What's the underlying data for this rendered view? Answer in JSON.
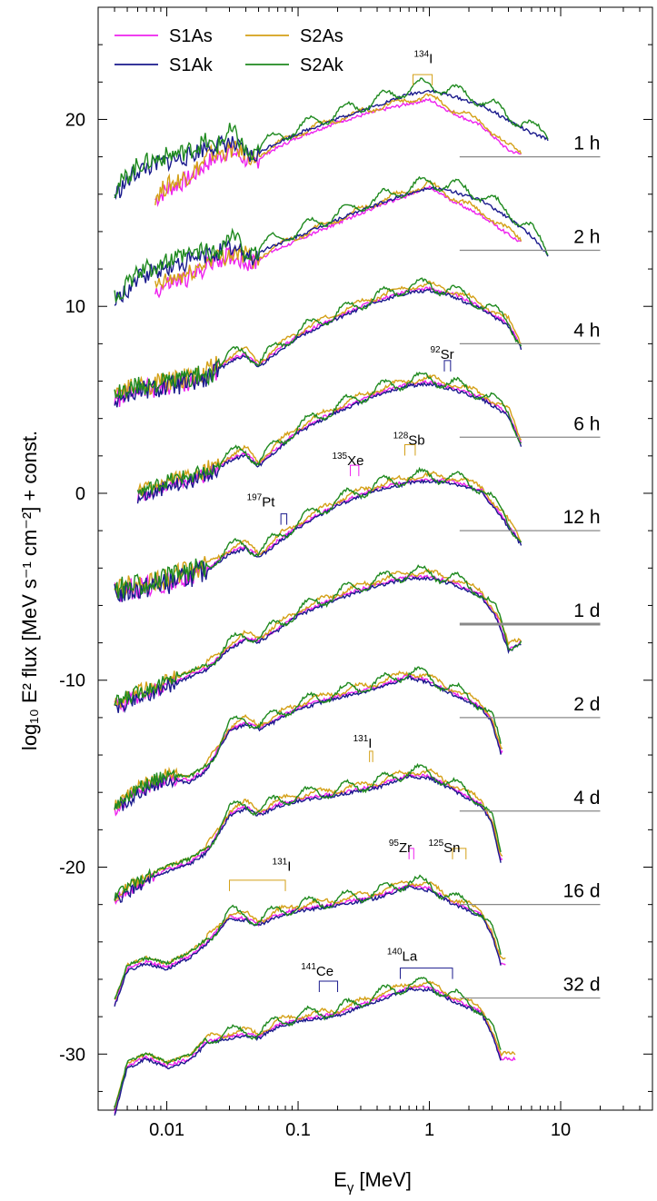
{
  "chart_data": {
    "type": "line",
    "xlabel": "E",
    "xlabel_sub": "γ",
    "xlabel_unit": "[MeV]",
    "ylabel": "log₁₀ E² flux [MeV s⁻¹ cm⁻²] + const.",
    "xscale": "log",
    "xlim": [
      0.003,
      50
    ],
    "ylim": [
      -33,
      26
    ],
    "xticks": [
      {
        "value": 0.01,
        "label": "0.01"
      },
      {
        "value": 0.1,
        "label": "0.1"
      },
      {
        "value": 1,
        "label": "1"
      },
      {
        "value": 10,
        "label": "10"
      }
    ],
    "yticks": [
      {
        "value": 20,
        "label": "20"
      },
      {
        "value": 10,
        "label": "10"
      },
      {
        "value": 0,
        "label": "0"
      },
      {
        "value": -10,
        "label": "-10"
      },
      {
        "value": -20,
        "label": "-20"
      },
      {
        "value": -30,
        "label": "-30"
      }
    ],
    "legend": {
      "position": "top-left",
      "entries": [
        {
          "name": "S1As",
          "color": "#ee22ee"
        },
        {
          "name": "S2As",
          "color": "#d4a017"
        },
        {
          "name": "S1Ak",
          "color": "#1a1a8c"
        },
        {
          "name": "S2Ak",
          "color": "#1f8a1f"
        }
      ]
    },
    "series": [
      {
        "time": "1 h",
        "ref_y": 18,
        "x": [
          0.004,
          0.006,
          0.008,
          0.01,
          0.015,
          0.02,
          0.03,
          0.045,
          0.06,
          0.1,
          0.2,
          0.4,
          0.7,
          1,
          1.5,
          2.5,
          4,
          6,
          8
        ],
        "y": [
          16.2,
          17.5,
          17.8,
          18.0,
          18.3,
          18.8,
          19.0,
          18.2,
          18.8,
          19.5,
          20.3,
          21.0,
          21.6,
          21.8,
          21.5,
          21.0,
          20.2,
          19.5,
          19.2
        ],
        "y_s": [
          null,
          null,
          15.8,
          16.4,
          17.0,
          17.8,
          18.5,
          17.8,
          18.4,
          19.2,
          20.0,
          20.6,
          21.0,
          21.2,
          20.5,
          19.8,
          18.5,
          18.1,
          null
        ],
        "xmax_s": 5,
        "noise_end": 0.05,
        "noise_amp": 0.5
      },
      {
        "time": "2 h",
        "ref_y": 13,
        "x": [
          0.004,
          0.006,
          0.008,
          0.01,
          0.015,
          0.02,
          0.03,
          0.045,
          0.06,
          0.1,
          0.2,
          0.4,
          0.7,
          1,
          1.5,
          2.5,
          4,
          6,
          8
        ],
        "y": [
          10.4,
          11.7,
          12.1,
          12.3,
          12.7,
          13.0,
          13.4,
          12.9,
          13.4,
          14.0,
          14.9,
          15.7,
          16.3,
          16.6,
          16.4,
          15.9,
          15.0,
          14.0,
          13.0
        ],
        "y_s": [
          null,
          null,
          10.9,
          11.3,
          11.7,
          12.3,
          12.9,
          12.4,
          13.0,
          13.7,
          14.6,
          15.5,
          16.1,
          16.5,
          15.8,
          15.0,
          14.0,
          13.2,
          null
        ],
        "xmax_s": 5,
        "noise_end": 0.05,
        "noise_amp": 0.5
      },
      {
        "time": "4 h",
        "ref_y": 8,
        "x": [
          0.004,
          0.006,
          0.01,
          0.02,
          0.03,
          0.04,
          0.05,
          0.07,
          0.1,
          0.2,
          0.4,
          0.7,
          1,
          1.5,
          2.5,
          4,
          5
        ],
        "y": [
          5.2,
          5.7,
          5.9,
          6.3,
          7.3,
          7.6,
          7.0,
          7.8,
          8.6,
          9.6,
          10.5,
          11.0,
          11.1,
          10.8,
          10.1,
          9.2,
          8.0
        ],
        "xmax_s": 5,
        "noise_end": 0.025,
        "noise_amp": 0.55
      },
      {
        "time": "6 h",
        "ref_y": 3,
        "x": [
          0.006,
          0.008,
          0.01,
          0.02,
          0.03,
          0.04,
          0.05,
          0.07,
          0.1,
          0.2,
          0.4,
          0.7,
          1,
          1.5,
          2.5,
          4,
          5
        ],
        "y": [
          0.0,
          0.3,
          0.6,
          1.1,
          2.0,
          2.3,
          1.7,
          2.6,
          3.5,
          4.6,
          5.5,
          6.0,
          6.1,
          5.8,
          5.3,
          4.4,
          2.8
        ],
        "xmax_s": 5,
        "noise_end": 0.025,
        "noise_amp": 0.4
      },
      {
        "time": "12 h",
        "ref_y": -2,
        "x": [
          0.004,
          0.006,
          0.01,
          0.02,
          0.03,
          0.04,
          0.05,
          0.07,
          0.1,
          0.2,
          0.4,
          0.7,
          1,
          1.5,
          2.5,
          3.5,
          5
        ],
        "y": [
          -5.2,
          -4.9,
          -4.6,
          -3.9,
          -3.0,
          -2.7,
          -3.2,
          -2.4,
          -1.6,
          -0.4,
          0.4,
          0.8,
          0.9,
          0.8,
          0.3,
          -1.0,
          -2.5
        ],
        "xmax_s": 5,
        "noise_end": 0.02,
        "noise_amp": 0.6
      },
      {
        "time": "1 d",
        "ref_y": -7,
        "ref_thick": true,
        "x": [
          0.004,
          0.006,
          0.01,
          0.02,
          0.03,
          0.04,
          0.05,
          0.07,
          0.1,
          0.2,
          0.4,
          0.7,
          1,
          1.5,
          2.5,
          3.3,
          4,
          5
        ],
        "y": [
          -11.3,
          -10.7,
          -10.1,
          -9.2,
          -8.1,
          -7.6,
          -7.7,
          -7.1,
          -6.3,
          -5.4,
          -4.7,
          -4.3,
          -4.3,
          -4.6,
          -5.3,
          -6.5,
          -8.2,
          -7.8
        ],
        "xmax_s": 5,
        "noise_end": 0.012,
        "noise_amp": 0.4
      },
      {
        "time": "2 d",
        "ref_y": -12,
        "x": [
          0.004,
          0.006,
          0.01,
          0.015,
          0.02,
          0.03,
          0.04,
          0.05,
          0.07,
          0.1,
          0.2,
          0.4,
          0.7,
          1,
          1.5,
          2.5,
          3,
          3.5
        ],
        "y": [
          -16.8,
          -15.8,
          -15.1,
          -15.2,
          -14.6,
          -12.5,
          -12.1,
          -12.4,
          -11.9,
          -11.3,
          -10.7,
          -10.2,
          -9.6,
          -9.9,
          -10.5,
          -11.3,
          -12.0,
          -13.7
        ],
        "xmax_s": 3.6,
        "noise_end": 0.012,
        "noise_amp": 0.35
      },
      {
        "time": "4 d",
        "ref_y": -17,
        "x": [
          0.004,
          0.006,
          0.01,
          0.015,
          0.02,
          0.03,
          0.04,
          0.05,
          0.07,
          0.1,
          0.2,
          0.4,
          0.7,
          1,
          1.5,
          2.5,
          3,
          3.5
        ],
        "y": [
          -21.6,
          -20.8,
          -20.0,
          -19.6,
          -19.0,
          -17.0,
          -16.6,
          -17.0,
          -16.5,
          -16.2,
          -15.9,
          -15.5,
          -14.9,
          -15.0,
          -15.6,
          -16.5,
          -17.4,
          -19.5
        ],
        "xmax_s": 3.6,
        "noise_end": 0.008,
        "noise_amp": 0.3
      },
      {
        "time": "16 d",
        "ref_y": -22,
        "x": [
          0.004,
          0.005,
          0.007,
          0.01,
          0.015,
          0.02,
          0.03,
          0.04,
          0.05,
          0.07,
          0.1,
          0.2,
          0.4,
          0.7,
          1,
          1.5,
          2.5,
          3,
          3.5
        ],
        "y": [
          -27.2,
          -25.3,
          -24.9,
          -25.2,
          -24.6,
          -23.9,
          -22.5,
          -22.6,
          -22.9,
          -22.4,
          -22.1,
          -21.8,
          -21.4,
          -20.8,
          -21.0,
          -21.7,
          -22.4,
          -23.4,
          -25.0
        ],
        "xmax_s": 3.8,
        "noise_end": 0,
        "noise_amp": 0
      },
      {
        "time": "32 d",
        "ref_y": -27,
        "x": [
          0.004,
          0.005,
          0.007,
          0.01,
          0.015,
          0.02,
          0.03,
          0.04,
          0.05,
          0.07,
          0.1,
          0.2,
          0.4,
          0.7,
          1,
          1.5,
          2.5,
          3,
          3.5
        ],
        "y": [
          -33.0,
          -30.5,
          -30.0,
          -30.5,
          -30.1,
          -29.2,
          -28.9,
          -28.8,
          -28.9,
          -28.3,
          -28.0,
          -27.7,
          -26.9,
          -26.3,
          -26.3,
          -26.9,
          -27.6,
          -28.7,
          -30.1
        ],
        "xmax_s": 4.5,
        "noise_end": 0,
        "noise_amp": 0
      }
    ],
    "isotopes": [
      {
        "mass": "134",
        "el": "I",
        "x": 0.9,
        "y": 23.0,
        "line_x": [
          0.75,
          1.05
        ],
        "line_y": 22.4,
        "color": "#d4a017"
      },
      {
        "mass": "92",
        "el": "Sr",
        "x": 1.25,
        "y": 7.2,
        "line_x": [
          1.3,
          1.45
        ],
        "line_y": 7.1,
        "color": "#1a1a8c"
      },
      {
        "mass": "128",
        "el": "Sb",
        "x": 0.7,
        "y": 2.6,
        "line_x": [
          0.65,
          0.78
        ],
        "line_y": 2.6,
        "color": "#d4a017"
      },
      {
        "mass": "135",
        "el": "Xe",
        "x": 0.24,
        "y": 1.5,
        "line_x": [
          0.25,
          0.29
        ],
        "line_y": 1.5,
        "color": "#ee22ee"
      },
      {
        "mass": "197",
        "el": "Pt",
        "x": 0.052,
        "y": -0.7,
        "line_x": [
          0.074,
          0.082
        ],
        "line_y": -1.1,
        "color": "#1a1a8c"
      },
      {
        "mass": "131",
        "el": "I",
        "x": 0.31,
        "y": -13.6,
        "line_x": [
          0.35,
          0.37
        ],
        "line_y": -13.8,
        "color": "#d4a017"
      },
      {
        "mass": "95",
        "el": "Zr",
        "x": 0.6,
        "y": -19.2,
        "line_x": [
          0.7,
          0.76
        ],
        "line_y": -19.0,
        "color": "#ee22ee"
      },
      {
        "mass": "125",
        "el": "Sn",
        "x": 1.3,
        "y": -19.2,
        "line_x": [
          1.5,
          1.9
        ],
        "line_y": -19.0,
        "color": "#d4a017"
      },
      {
        "mass": "131",
        "el": "I",
        "x": 0.075,
        "y": -20.2,
        "line_x": [
          0.03,
          0.08
        ],
        "line_y": -20.7,
        "color": "#d4a017"
      },
      {
        "mass": "141",
        "el": "Ce",
        "x": 0.14,
        "y": -25.8,
        "line_x": [
          0.145,
          0.2
        ],
        "line_y": -26.1,
        "color": "#1a1a8c"
      },
      {
        "mass": "140",
        "el": "La",
        "x": 0.62,
        "y": -25.0,
        "line_x": [
          0.6,
          1.5
        ],
        "line_y": -25.4,
        "color": "#1a1a8c"
      }
    ]
  }
}
